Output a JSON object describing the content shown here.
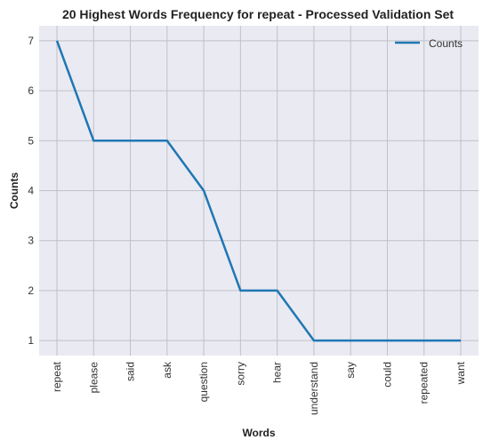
{
  "chart_data": {
    "type": "line",
    "title": "20 Highest Words Frequency for repeat - Processed Validation Set",
    "xlabel": "Words",
    "ylabel": "Counts",
    "categories": [
      "repeat",
      "please",
      "said",
      "ask",
      "question",
      "sorry",
      "hear",
      "understand",
      "say",
      "could",
      "repeated",
      "want"
    ],
    "series": [
      {
        "name": "Counts",
        "values": [
          7,
          5,
          5,
          5,
          4,
          2,
          2,
          1,
          1,
          1,
          1,
          1
        ]
      }
    ],
    "yticks": [
      1,
      2,
      3,
      4,
      5,
      6,
      7
    ],
    "ylim": [
      0.7,
      7.3
    ],
    "grid": true,
    "legend": "top-right",
    "colors": {
      "series": "#1f77b4",
      "background": "#eaeaf2",
      "grid": "#c0c0c8"
    }
  }
}
